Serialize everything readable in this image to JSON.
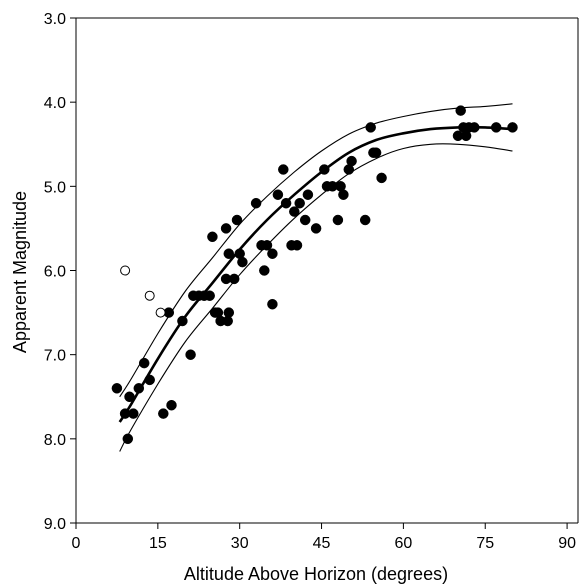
{
  "chart_data": {
    "type": "scatter",
    "xlabel": "Altitude Above Horizon (degrees)",
    "ylabel": "Apparent Magnitude",
    "xlim": [
      0,
      92
    ],
    "ylim": [
      3.0,
      9.0
    ],
    "y_inverted": true,
    "grid": false,
    "x_ticks": [
      0,
      15,
      30,
      45,
      60,
      75,
      90
    ],
    "x_tick_labels": [
      "0",
      "15",
      "30",
      "45",
      "60",
      "75",
      "90"
    ],
    "y_ticks": [
      3.0,
      4.0,
      5.0,
      6.0,
      7.0,
      8.0,
      9.0
    ],
    "y_tick_labels": [
      "3.0",
      "4.0",
      "5.0",
      "6.0",
      "7.0",
      "8.0",
      "9.0"
    ],
    "series": [
      {
        "marker": "filled-circle",
        "color": "#000000",
        "points": [
          [
            7.5,
            7.4
          ],
          [
            9,
            7.7
          ],
          [
            9.5,
            8.0
          ],
          [
            9.8,
            7.5
          ],
          [
            10.5,
            7.7
          ],
          [
            11.5,
            7.4
          ],
          [
            12.5,
            7.1
          ],
          [
            13.5,
            7.3
          ],
          [
            16,
            7.7
          ],
          [
            17,
            6.5
          ],
          [
            17.5,
            7.6
          ],
          [
            19.5,
            6.6
          ],
          [
            21,
            7.0
          ],
          [
            21.5,
            6.3
          ],
          [
            22.5,
            6.3
          ],
          [
            23.5,
            6.3
          ],
          [
            24.5,
            6.3
          ],
          [
            25,
            5.6
          ],
          [
            25.5,
            6.5
          ],
          [
            26,
            6.5
          ],
          [
            26.5,
            6.6
          ],
          [
            27.5,
            5.5
          ],
          [
            27.5,
            6.1
          ],
          [
            27.8,
            6.6
          ],
          [
            28,
            6.5
          ],
          [
            28,
            5.8
          ],
          [
            29,
            6.1
          ],
          [
            29.5,
            5.4
          ],
          [
            30,
            5.8
          ],
          [
            30.5,
            5.9
          ],
          [
            33,
            5.2
          ],
          [
            34,
            5.7
          ],
          [
            34.5,
            6.0
          ],
          [
            35,
            5.7
          ],
          [
            36,
            5.8
          ],
          [
            36,
            6.4
          ],
          [
            37,
            5.1
          ],
          [
            38,
            4.8
          ],
          [
            38.5,
            5.2
          ],
          [
            39.5,
            5.7
          ],
          [
            40,
            5.3
          ],
          [
            40.5,
            5.7
          ],
          [
            41,
            5.2
          ],
          [
            42,
            5.4
          ],
          [
            42.5,
            5.1
          ],
          [
            44,
            5.5
          ],
          [
            45.5,
            4.8
          ],
          [
            46,
            5.0
          ],
          [
            47,
            5.0
          ],
          [
            48,
            5.4
          ],
          [
            48.5,
            5.0
          ],
          [
            49,
            5.1
          ],
          [
            50,
            4.8
          ],
          [
            50.5,
            4.7
          ],
          [
            53,
            5.4
          ],
          [
            54,
            4.3
          ],
          [
            54.5,
            4.6
          ],
          [
            55,
            4.6
          ],
          [
            56,
            4.9
          ],
          [
            70,
            4.4
          ],
          [
            70.5,
            4.1
          ],
          [
            71,
            4.3
          ],
          [
            71.5,
            4.4
          ],
          [
            72,
            4.3
          ],
          [
            73,
            4.3
          ],
          [
            77,
            4.3
          ],
          [
            80,
            4.3
          ]
        ]
      },
      {
        "marker": "open-circle",
        "color": "#000000",
        "points": [
          [
            9,
            6.0
          ],
          [
            13.5,
            6.3
          ],
          [
            15.5,
            6.5
          ]
        ]
      }
    ],
    "fit_curves": [
      {
        "style": "thick",
        "points": [
          [
            8,
            7.8
          ],
          [
            10,
            7.6
          ],
          [
            15,
            7.05
          ],
          [
            20,
            6.55
          ],
          [
            25,
            6.15
          ],
          [
            30,
            5.75
          ],
          [
            35,
            5.4
          ],
          [
            40,
            5.1
          ],
          [
            45,
            4.83
          ],
          [
            50,
            4.6
          ],
          [
            55,
            4.45
          ],
          [
            60,
            4.37
          ],
          [
            65,
            4.32
          ],
          [
            70,
            4.3
          ],
          [
            75,
            4.3
          ],
          [
            80,
            4.32
          ]
        ]
      },
      {
        "style": "thin",
        "points": [
          [
            8,
            7.5
          ],
          [
            10,
            7.3
          ],
          [
            15,
            6.75
          ],
          [
            20,
            6.25
          ],
          [
            25,
            5.85
          ],
          [
            30,
            5.45
          ],
          [
            35,
            5.12
          ],
          [
            40,
            4.83
          ],
          [
            45,
            4.58
          ],
          [
            50,
            4.38
          ],
          [
            55,
            4.25
          ],
          [
            60,
            4.17
          ],
          [
            65,
            4.11
          ],
          [
            70,
            4.07
          ],
          [
            75,
            4.05
          ],
          [
            80,
            4.02
          ]
        ]
      },
      {
        "style": "thin",
        "points": [
          [
            8,
            8.15
          ],
          [
            10,
            7.9
          ],
          [
            15,
            7.35
          ],
          [
            20,
            6.85
          ],
          [
            25,
            6.45
          ],
          [
            30,
            6.05
          ],
          [
            35,
            5.7
          ],
          [
            40,
            5.38
          ],
          [
            45,
            5.1
          ],
          [
            50,
            4.85
          ],
          [
            55,
            4.67
          ],
          [
            60,
            4.55
          ],
          [
            65,
            4.5
          ],
          [
            70,
            4.5
          ],
          [
            75,
            4.53
          ],
          [
            80,
            4.58
          ]
        ]
      }
    ]
  }
}
